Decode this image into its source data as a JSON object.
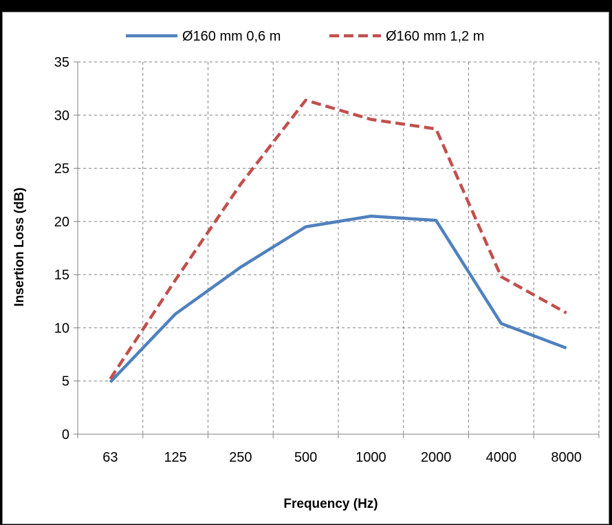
{
  "chart_data": {
    "type": "line",
    "title": "",
    "xlabel": "Frequency (Hz)",
    "ylabel": "Insertion Loss (dB)",
    "categories": [
      "63",
      "125",
      "250",
      "500",
      "1000",
      "2000",
      "4000",
      "8000"
    ],
    "ylim": [
      0,
      35
    ],
    "yticks": [
      "0",
      "5",
      "10",
      "15",
      "20",
      "25",
      "30",
      "35"
    ],
    "grid": true,
    "grid_style": "dashed",
    "legend_position": "top",
    "series": [
      {
        "name": "Ø160 mm 0,6 m",
        "values": [
          4.9,
          11.3,
          15.7,
          19.5,
          20.5,
          20.1,
          10.4,
          8.1
        ],
        "color": "#4f81bd",
        "style": "solid"
      },
      {
        "name": "Ø160 mm 1,2 m",
        "values": [
          5.2,
          14.5,
          23.5,
          31.4,
          29.6,
          28.7,
          14.8,
          11.4
        ],
        "color": "#c0504d",
        "style": "dashed"
      }
    ]
  }
}
